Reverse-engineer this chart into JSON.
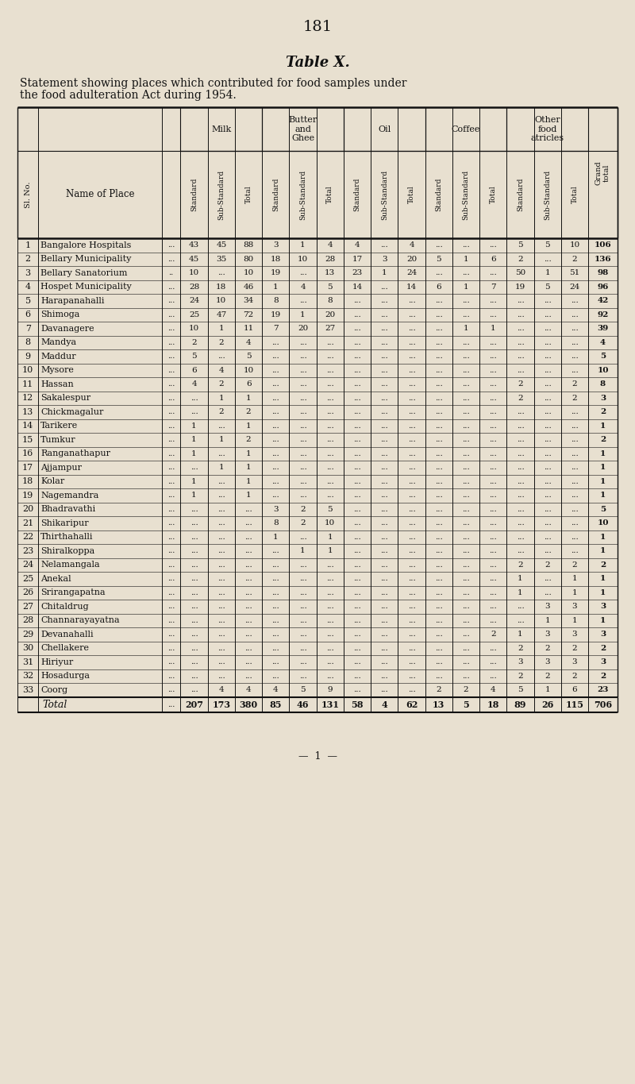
{
  "page_number": "181",
  "table_title": "Table X.",
  "subtitle1": "Statement showing places which contributed for food samples under",
  "subtitle2": "the food adulteration Act during 1954.",
  "bg_color": "#e8e0d0",
  "text_color": "#111111",
  "rows": [
    [
      1,
      "Bangalore Hospitals",
      "...",
      43,
      45,
      88,
      3,
      1,
      4,
      4,
      "...",
      4,
      "...",
      "...",
      "...",
      5,
      5,
      10,
      106
    ],
    [
      2,
      "Bellary Municipality",
      "...",
      45,
      35,
      80,
      18,
      10,
      28,
      17,
      3,
      20,
      5,
      1,
      6,
      2,
      "...",
      2,
      136
    ],
    [
      3,
      "Bellary Sanatorium",
      "..",
      10,
      "...",
      10,
      19,
      "...",
      13,
      23,
      1,
      24,
      "...",
      "...",
      "...",
      50,
      1,
      51,
      98
    ],
    [
      4,
      "Hospet Municipality",
      "...",
      28,
      18,
      46,
      1,
      4,
      5,
      14,
      "...",
      14,
      6,
      1,
      7,
      19,
      5,
      24,
      96
    ],
    [
      5,
      "Harapanahalli",
      "...",
      24,
      10,
      34,
      8,
      "...",
      8,
      "...",
      "...",
      "...",
      "...",
      "...",
      "...",
      "...",
      "...",
      "...",
      42
    ],
    [
      6,
      "Shimoga",
      "...",
      25,
      47,
      72,
      19,
      1,
      20,
      "...",
      "...",
      "...",
      "...",
      "...",
      "...",
      "...",
      "...",
      "...",
      92
    ],
    [
      7,
      "Davanagere",
      "...",
      10,
      1,
      11,
      7,
      20,
      27,
      "...",
      "...",
      "...",
      "...",
      1,
      1,
      "...",
      "...",
      "...",
      39
    ],
    [
      8,
      "Mandya",
      "...",
      2,
      2,
      4,
      "...",
      "...",
      "...",
      "...",
      "...",
      "...",
      "...",
      "...",
      "...",
      "...",
      "...",
      "...",
      4
    ],
    [
      9,
      "Maddur",
      "...",
      5,
      "...",
      5,
      "...",
      "...",
      "...",
      "...",
      "...",
      "...",
      "...",
      "...",
      "...",
      "...",
      "...",
      "...",
      5
    ],
    [
      10,
      "Mysore",
      "...",
      6,
      4,
      10,
      "...",
      "...",
      "...",
      "...",
      "...",
      "...",
      "...",
      "...",
      "...",
      "...",
      "...",
      "...",
      10
    ],
    [
      11,
      "Hassan",
      "...",
      4,
      2,
      6,
      "...",
      "...",
      "...",
      "...",
      "...",
      "...",
      "...",
      "...",
      "...",
      2,
      "...",
      2,
      8
    ],
    [
      12,
      "Sakalespur",
      "...",
      "...",
      1,
      1,
      "...",
      "...",
      "...",
      "...",
      "...",
      "...",
      "...",
      "...",
      "...",
      2,
      "...",
      2,
      3
    ],
    [
      13,
      "Chickmagalur",
      "...",
      "...",
      2,
      2,
      "...",
      "...",
      "...",
      "...",
      "...",
      "...",
      "...",
      "...",
      "...",
      "...",
      "...",
      "...",
      2
    ],
    [
      14,
      "Tarikere",
      "...",
      1,
      "...",
      1,
      "...",
      "...",
      "...",
      "...",
      "...",
      "...",
      "...",
      "...",
      "...",
      "...",
      "...",
      "...",
      1
    ],
    [
      15,
      "Tumkur",
      "...",
      1,
      1,
      2,
      "...",
      "...",
      "...",
      "...",
      "...",
      "...",
      "...",
      "...",
      "...",
      "...",
      "...",
      "...",
      2
    ],
    [
      16,
      "Ranganathapur",
      "...",
      1,
      "...",
      1,
      "...",
      "...",
      "...",
      "...",
      "...",
      "...",
      "...",
      "...",
      "...",
      "...",
      "...",
      "...",
      1
    ],
    [
      17,
      "Ajjampur",
      "...",
      "...",
      1,
      1,
      "...",
      "...",
      "...",
      "...",
      "...",
      "...",
      "...",
      "...",
      "...",
      "...",
      "...",
      "...",
      1
    ],
    [
      18,
      "Kolar",
      "...",
      1,
      "...",
      1,
      "...",
      "...",
      "...",
      "...",
      "...",
      "...",
      "...",
      "...",
      "...",
      "...",
      "...",
      "...",
      1
    ],
    [
      19,
      "Nagemandra",
      "...",
      1,
      "...",
      1,
      "...",
      "...",
      "...",
      "...",
      "...",
      "...",
      "...",
      "...",
      "...",
      "...",
      "...",
      "...",
      1
    ],
    [
      20,
      "Bhadravathi",
      "...",
      "...",
      "...",
      "...",
      3,
      2,
      5,
      "...",
      "...",
      "...",
      "...",
      "...",
      "...",
      "...",
      "...",
      "...",
      5
    ],
    [
      21,
      "Shikaripur",
      "...",
      "...",
      "...",
      "...",
      8,
      2,
      10,
      "...",
      "...",
      "...",
      "...",
      "...",
      "...",
      "...",
      "...",
      "...",
      10
    ],
    [
      22,
      "Thirthahalli",
      "...",
      "...",
      "...",
      "...",
      1,
      "...",
      1,
      "...",
      "...",
      "...",
      "...",
      "...",
      "...",
      "...",
      "...",
      "...",
      1
    ],
    [
      23,
      "Shiralkoppa",
      "...",
      "...",
      "...",
      "...",
      "...",
      1,
      1,
      "...",
      "...",
      "...",
      "...",
      "...",
      "...",
      "...",
      "...",
      "...",
      1
    ],
    [
      24,
      "Nelamangala",
      "...",
      "...",
      "...",
      "...",
      "...",
      "...",
      "...",
      "...",
      "...",
      "...",
      "...",
      "...",
      "...",
      2,
      2,
      2,
      2
    ],
    [
      25,
      "Anekal",
      "...",
      "...",
      "...",
      "...",
      "...",
      "...",
      "...",
      "...",
      "...",
      "...",
      "...",
      "...",
      "...",
      1,
      "...",
      1,
      1
    ],
    [
      26,
      "Srirangapatna",
      "...",
      "...",
      "...",
      "...",
      "...",
      "...",
      "...",
      "...",
      "...",
      "...",
      "...",
      "...",
      "...",
      1,
      "...",
      1,
      1
    ],
    [
      27,
      "Chitaldrug",
      "...",
      "...",
      "...",
      "...",
      "...",
      "...",
      "...",
      "...",
      "...",
      "...",
      "...",
      "...",
      "...",
      "...",
      3,
      3,
      3
    ],
    [
      28,
      "Channarayayatna",
      "...",
      "...",
      "...",
      "...",
      "...",
      "...",
      "...",
      "...",
      "...",
      "...",
      "...",
      "...",
      "...",
      "...",
      1,
      1,
      1
    ],
    [
      29,
      "Devanahalli",
      "...",
      "...",
      "...",
      "...",
      "...",
      "...",
      "...",
      "...",
      "...",
      "...",
      "...",
      "...",
      2,
      1,
      3,
      3,
      3
    ],
    [
      30,
      "Chellakere",
      "...",
      "...",
      "...",
      "...",
      "...",
      "...",
      "...",
      "...",
      "...",
      "...",
      "...",
      "...",
      "...",
      2,
      2,
      2,
      2
    ],
    [
      31,
      "Hiriyur",
      "...",
      "...",
      "...",
      "...",
      "...",
      "...",
      "...",
      "...",
      "...",
      "...",
      "...",
      "...",
      "...",
      3,
      3,
      3,
      3
    ],
    [
      32,
      "Hosadurga",
      "...",
      "...",
      "...",
      "...",
      "...",
      "...",
      "...",
      "...",
      "...",
      "...",
      "...",
      "...",
      "...",
      2,
      2,
      2,
      2
    ],
    [
      33,
      "Coorg",
      "...",
      "...",
      4,
      4,
      4,
      5,
      9,
      "...",
      "...",
      "...",
      2,
      2,
      4,
      5,
      1,
      6,
      23
    ]
  ],
  "totals_label": "Total",
  "totals": [
    "...",
    207,
    173,
    380,
    85,
    46,
    131,
    58,
    4,
    62,
    13,
    5,
    18,
    89,
    26,
    115,
    706
  ]
}
